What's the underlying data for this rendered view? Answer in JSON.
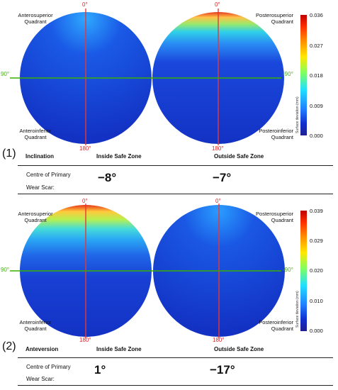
{
  "panels": [
    {
      "number": "(1)",
      "header_left": "Inclination",
      "header_inside": "Inside Safe Zone",
      "header_outside": "Outside Safe Zone",
      "row_label_line1": "Centre of Primary",
      "row_label_line2": "Wear Scar:",
      "inside_value": "−8°",
      "outside_value": "−7°",
      "quadrants": {
        "left_top": [
          "Anterosuperior",
          "Quadrant"
        ],
        "left_bottom": [
          "Anteroinferior",
          "Quadrant"
        ],
        "right_top": [
          "Posterosuperior",
          "Quadrant"
        ],
        "right_bottom": [
          "Posteroinferior",
          "Quadrant"
        ]
      },
      "angles": {
        "top_left": "0°",
        "top_right": "0°",
        "bottom_left": "180°",
        "bottom_right": "180°",
        "left": "90°",
        "right": "-90°"
      },
      "colorbar": {
        "title": "Surface deviation (mm)",
        "ticks": [
          "0.036",
          "0.027",
          "0.018",
          "0.009",
          "0.000"
        ]
      }
    },
    {
      "number": "(2)",
      "header_left": "Anteversion",
      "header_inside": "Inside Safe Zone",
      "header_outside": "Outside Safe Zone",
      "row_label_line1": "Centre of Primary",
      "row_label_line2": "Wear Scar:",
      "inside_value": "1°",
      "outside_value": "−17°",
      "quadrants": {
        "left_top": [
          "Anterosuperior",
          "Quadrant"
        ],
        "left_bottom": [
          "Anteroinferior",
          "Quadrant"
        ],
        "right_top": [
          "Posterosuperior",
          "Quadrant"
        ],
        "right_bottom": [
          "Posteroinferior",
          "Quadrant"
        ]
      },
      "angles": {
        "top_left": "0°",
        "top_right": "0°",
        "bottom_left": "180°",
        "bottom_right": "180°",
        "left": "90°",
        "right": "-90°"
      },
      "colorbar": {
        "title": "Surface deviation (mm)",
        "ticks": [
          "0.039",
          "0.029",
          "0.020",
          "0.010",
          "0.000"
        ]
      }
    }
  ],
  "colors": {
    "axis_vertical": "#e53935",
    "axis_horizontal": "#39b000",
    "map_base": "#1236c8"
  }
}
